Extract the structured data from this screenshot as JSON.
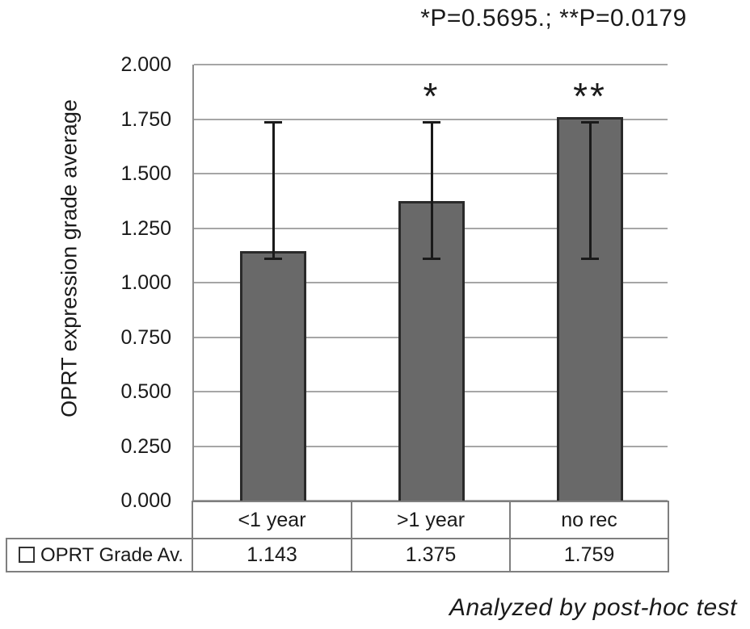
{
  "chart_data": {
    "type": "bar",
    "title": "*P=0.5695.; **P=0.0179",
    "categories": [
      "<1 year",
      ">1 year",
      "no rec"
    ],
    "series": [
      {
        "name": "OPRT Grade Av.",
        "values": [
          1.143,
          1.375,
          1.759
        ]
      }
    ],
    "error_bars": [
      {
        "low": 1.11,
        "high": 1.735
      },
      {
        "low": 1.11,
        "high": 1.735
      },
      {
        "low": 1.11,
        "high": 1.735
      }
    ],
    "annotations": [
      "",
      "*",
      "**"
    ],
    "xlabel": "",
    "ylabel": "OPRT expression grade average",
    "ylim": [
      0,
      2
    ],
    "yticks": [
      "0.000",
      "0.250",
      "0.500",
      "0.750",
      "1.000",
      "1.250",
      "1.500",
      "1.750",
      "2.000"
    ],
    "grid": true,
    "legend_position": "bottom-table-left",
    "footnote": "Analyzed by post-hoc test"
  },
  "table": {
    "legend_label": "OPRT Grade Av.",
    "categories": [
      "<1 year",
      ">1 year",
      "no rec"
    ],
    "values": [
      "1.143",
      "1.375",
      "1.759"
    ]
  },
  "colors": {
    "bar_fill": "#696969",
    "bar_border": "#2a2a2a",
    "error_bar": "#1a1a1a",
    "gridline": "#a6a6a6",
    "table_border": "#7f7f7f",
    "text": "#1a1a1a"
  }
}
